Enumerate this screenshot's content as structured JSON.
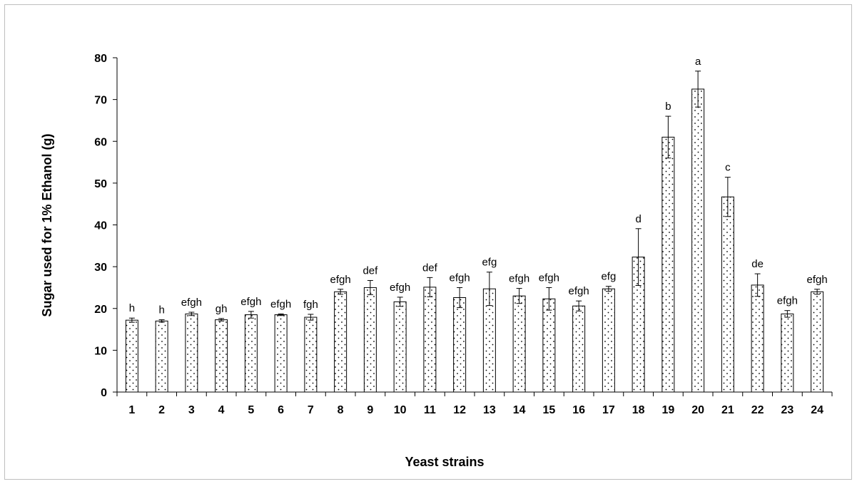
{
  "chart_data": {
    "type": "bar",
    "title": "",
    "xlabel": "Yeast strains",
    "ylabel": "Sugar used for 1% Ethanol (g)",
    "ylim": [
      0,
      80
    ],
    "yticks": [
      0,
      10,
      20,
      30,
      40,
      50,
      60,
      70,
      80
    ],
    "grid": false,
    "legend": "none",
    "bar_fill": "dotted pattern",
    "colors": {
      "bar_border": "#000000",
      "dots": "#000000",
      "axis": "#000000",
      "frame": "#bfbfbf"
    },
    "categories": [
      "1",
      "2",
      "3",
      "4",
      "5",
      "6",
      "7",
      "8",
      "9",
      "10",
      "11",
      "12",
      "13",
      "14",
      "15",
      "16",
      "17",
      "18",
      "19",
      "20",
      "21",
      "22",
      "23",
      "24"
    ],
    "values": [
      17.2,
      17.0,
      18.7,
      17.3,
      18.5,
      18.5,
      17.9,
      24.0,
      25.0,
      21.6,
      25.1,
      22.6,
      24.7,
      23.0,
      22.3,
      20.6,
      24.7,
      32.3,
      61.0,
      72.5,
      46.7,
      25.6,
      18.7,
      24.0
    ],
    "errors": [
      0.5,
      0.3,
      0.4,
      0.3,
      0.8,
      0.2,
      0.7,
      0.6,
      1.7,
      1.1,
      2.3,
      2.4,
      4.0,
      1.8,
      2.7,
      1.2,
      0.6,
      6.8,
      5.0,
      4.3,
      4.7,
      2.7,
      0.8,
      0.6
    ],
    "labels": [
      "h",
      "h",
      "efgh",
      "gh",
      "efgh",
      "efgh",
      "fgh",
      "efgh",
      "def",
      "efgh",
      "def",
      "efgh",
      "efg",
      "efgh",
      "efgh",
      "efgh",
      "efg",
      "d",
      "b",
      "a",
      "c",
      "de",
      "efgh",
      "efgh"
    ]
  }
}
